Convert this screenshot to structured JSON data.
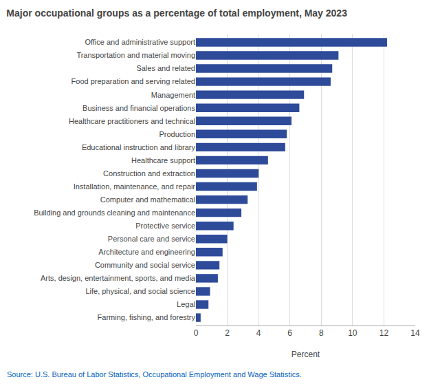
{
  "chart_data": {
    "type": "bar",
    "orientation": "horizontal",
    "title": "Major occupational groups as a percentage of total employment, May 2023",
    "categories": [
      "Farming, fishing, and forestry",
      "Legal",
      "Life, physical, and social science",
      "Arts, design, entertainment, sports, and media",
      "Community and social service",
      "Architecture and engineering",
      "Personal care and service",
      "Protective service",
      "Building and grounds cleaning and maintenance",
      "Computer and mathematical",
      "Installation, maintenance, and repair",
      "Construction and extraction",
      "Healthcare support",
      "Educational instruction and library",
      "Production",
      "Healthcare practitioners and technical",
      "Business and financial operations",
      "Management",
      "Food preparation and serving related",
      "Sales and related",
      "Transportation and material moving",
      "Office and administrative support"
    ],
    "values": [
      0.3,
      0.8,
      0.9,
      1.4,
      1.5,
      1.7,
      2.0,
      2.4,
      2.9,
      3.3,
      3.9,
      4.0,
      4.6,
      5.7,
      5.8,
      6.1,
      6.6,
      6.9,
      8.6,
      8.7,
      9.1,
      12.2
    ],
    "color": "#2e4b9a",
    "xlabel": "Percent",
    "xlim": [
      0,
      14
    ],
    "xticks": [
      0,
      2,
      4,
      6,
      8,
      10,
      12,
      14
    ],
    "grid": true,
    "annotations": [
      {
        "text": "Source: U.S. Bureau of Labor Statistics, Occupational Employment and Wage Statistics.",
        "color": "#0563C1"
      }
    ]
  }
}
